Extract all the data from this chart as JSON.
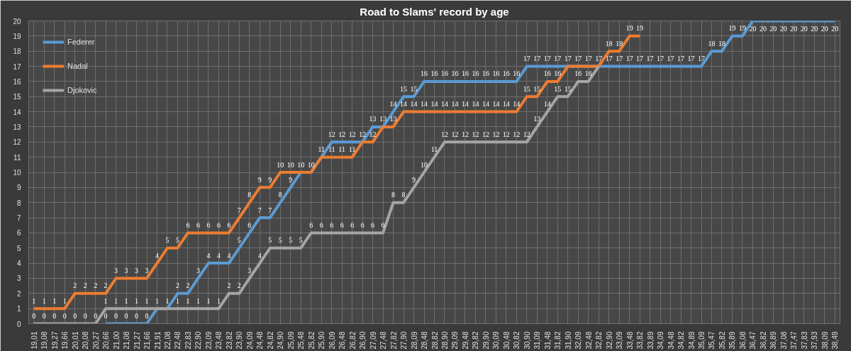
{
  "chart_data": {
    "type": "line",
    "title": "Road to Slams' record by age",
    "categories": [
      "19,01",
      "19,08",
      "19,27",
      "19,66",
      "20,01",
      "20,08",
      "20,27",
      "20,66",
      "21,00",
      "21,08",
      "21,27",
      "21,66",
      "21,91",
      "22,08",
      "22,48",
      "22,83",
      "22,90",
      "23,09",
      "23,48",
      "23,82",
      "23,90",
      "24,09",
      "24,48",
      "24,82",
      "24,90",
      "25,09",
      "25,48",
      "25,82",
      "25,90",
      "26,09",
      "26,48",
      "26,82",
      "26,90",
      "27,09",
      "27,48",
      "27,82",
      "27,90",
      "28,09",
      "28,48",
      "28,82",
      "28,90",
      "29,09",
      "29,48",
      "29,82",
      "29,90",
      "30,09",
      "30,48",
      "30,82",
      "30,90",
      "31,09",
      "31,48",
      "31,82",
      "31,90",
      "32,09",
      "32,48",
      "32,82",
      "32,90",
      "33,09",
      "33,48",
      "33,82",
      "33,89",
      "34,09",
      "34,48",
      "34,82",
      "34,89",
      "35,09",
      "35,47",
      "35,82",
      "35,89",
      "36,08",
      "36,47",
      "36,82",
      "36,89",
      "37,08",
      "37,47",
      "37,83",
      "37,93",
      "38,09",
      "38,49"
    ],
    "series": [
      {
        "name": "Federer",
        "color": "#5b9bd5",
        "values": [
          null,
          null,
          null,
          null,
          null,
          null,
          null,
          0,
          0,
          0,
          0,
          0,
          1,
          1,
          2,
          2,
          3,
          4,
          4,
          4,
          5,
          6,
          7,
          7,
          8,
          9,
          10,
          10,
          11,
          12,
          12,
          12,
          12,
          13,
          13,
          14,
          15,
          15,
          16,
          16,
          16,
          16,
          16,
          16,
          16,
          16,
          16,
          16,
          17,
          17,
          17,
          17,
          17,
          17,
          17,
          17,
          17,
          17,
          17,
          17,
          17,
          17,
          17,
          17,
          17,
          17,
          18,
          18,
          19,
          19,
          20,
          20,
          20,
          20,
          20,
          20,
          20,
          20,
          20
        ],
        "value_labels": [
          null,
          null,
          null,
          null,
          null,
          null,
          null,
          "0",
          "0",
          "0",
          "0",
          "0",
          null,
          null,
          "2",
          "2",
          "3",
          "4",
          "4",
          "4",
          "5",
          "6",
          "7",
          "7",
          "8",
          "9",
          null,
          null,
          null,
          "12",
          "12",
          "12",
          null,
          "13",
          null,
          "14",
          "15",
          "15",
          "16",
          "16",
          "16",
          "16",
          "16",
          "16",
          "16",
          "16",
          "16",
          "16",
          "17",
          "17",
          "17",
          "17",
          null,
          null,
          null,
          null,
          "17",
          "17",
          "17",
          "17",
          "17",
          "17",
          "17",
          "17",
          "17",
          "17",
          "18",
          "18",
          "19",
          "19",
          "20",
          "20",
          "20",
          "20",
          "20",
          "20",
          "20",
          "20",
          "20"
        ]
      },
      {
        "name": "Nadal",
        "color": "#ed7d31",
        "values": [
          1,
          1,
          1,
          1,
          2,
          2,
          2,
          2,
          3,
          3,
          3,
          3,
          4,
          5,
          5,
          6,
          6,
          6,
          6,
          6,
          7,
          8,
          9,
          9,
          10,
          10,
          10,
          10,
          11,
          11,
          11,
          11,
          12,
          12,
          13,
          13,
          14,
          14,
          14,
          14,
          14,
          14,
          14,
          14,
          14,
          14,
          14,
          14,
          15,
          15,
          16,
          16,
          17,
          17,
          17,
          17,
          18,
          18,
          19,
          19,
          null,
          null,
          null,
          null,
          null,
          null,
          null,
          null,
          null,
          null,
          null,
          null,
          null,
          null,
          null,
          null,
          null,
          null,
          null
        ],
        "value_labels": [
          "1",
          "1",
          "1",
          "1",
          "2",
          "2",
          "2",
          "2",
          "3",
          "3",
          "3",
          "3",
          "4",
          "5",
          "5",
          "6",
          "6",
          "6",
          "6",
          "6",
          "7",
          "8",
          "9",
          "9",
          "10",
          "10",
          "10",
          "10",
          "11",
          "11",
          "11",
          "11",
          "12",
          "12",
          "13",
          "13",
          "14",
          "14",
          "14",
          "14",
          "14",
          "14",
          "14",
          "14",
          "14",
          "14",
          "14",
          "14",
          "15",
          "15",
          "16",
          "16",
          "17",
          "17",
          "17",
          null,
          "18",
          "18",
          "19",
          "19",
          null,
          null,
          null,
          null,
          null,
          null,
          null,
          null,
          null,
          null,
          null,
          null,
          null,
          null,
          null,
          null,
          null,
          null,
          null
        ]
      },
      {
        "name": "Djokovic",
        "color": "#a5a5a5",
        "values": [
          0,
          0,
          0,
          0,
          0,
          0,
          0,
          1,
          1,
          1,
          1,
          1,
          1,
          1,
          1,
          1,
          1,
          1,
          1,
          2,
          2,
          3,
          4,
          5,
          5,
          5,
          5,
          6,
          6,
          6,
          6,
          6,
          6,
          6,
          6,
          8,
          8,
          9,
          10,
          11,
          12,
          12,
          12,
          12,
          12,
          12,
          12,
          12,
          12,
          13,
          14,
          15,
          15,
          16,
          16,
          17,
          null,
          null,
          null,
          null,
          null,
          null,
          null,
          null,
          null,
          null,
          null,
          null,
          null,
          null,
          null,
          null,
          null,
          null,
          null,
          null,
          null,
          null,
          null
        ],
        "value_labels": [
          "0",
          "0",
          "0",
          "0",
          "0",
          "0",
          "0",
          "1",
          "1",
          "1",
          "1",
          "1",
          "1",
          "1",
          "1",
          "1",
          "1",
          "1",
          "1",
          "2",
          "2",
          "3",
          "4",
          "5",
          "5",
          "5",
          "5",
          "6",
          "6",
          "6",
          "6",
          "6",
          "6",
          "6",
          "6",
          "8",
          "8",
          "9",
          "10",
          "11",
          "12",
          "12",
          "12",
          "12",
          "12",
          "12",
          "12",
          "12",
          "12",
          "13",
          "14",
          "15",
          "15",
          "16",
          "16",
          "17",
          null,
          null,
          null,
          null,
          null,
          null,
          null,
          null,
          null,
          null,
          null,
          null,
          null,
          null,
          null,
          null,
          null,
          null,
          null,
          null,
          null,
          null,
          null
        ]
      }
    ],
    "ylim": [
      0,
      20
    ],
    "yticks": [
      0,
      1,
      2,
      3,
      4,
      5,
      6,
      7,
      8,
      9,
      10,
      11,
      12,
      13,
      14,
      15,
      16,
      17,
      18,
      19,
      20
    ],
    "grid": true,
    "legend": "top left",
    "line_style": "solid",
    "marker": "none"
  }
}
